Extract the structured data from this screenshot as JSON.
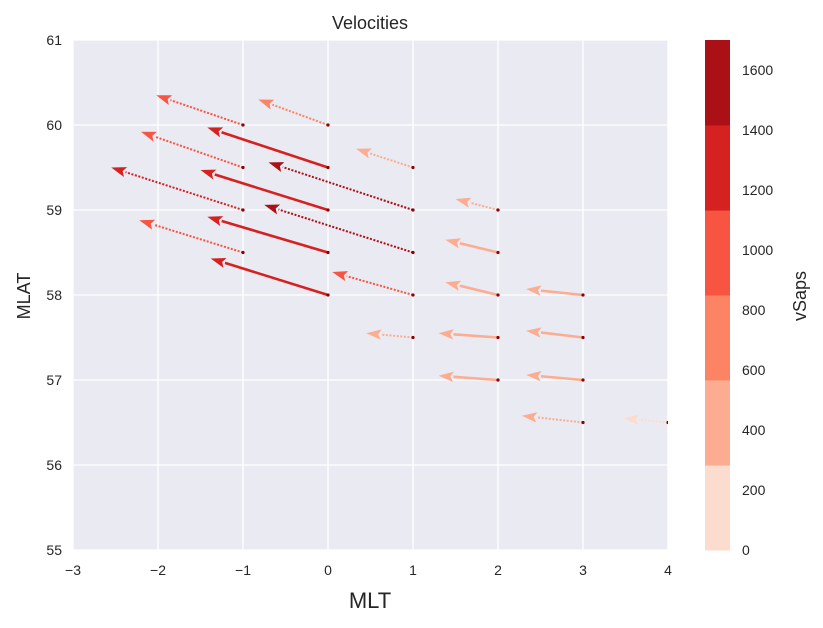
{
  "chart_data": {
    "type": "quiver",
    "title": "Velocities",
    "xlabel": "MLT",
    "ylabel": "MLAT",
    "xlim": [
      -3,
      4
    ],
    "ylim": [
      55,
      61
    ],
    "xticks": [
      -3,
      -2,
      -1,
      0,
      1,
      2,
      3,
      4
    ],
    "xtick_labels": [
      "−3",
      "−2",
      "−1",
      "0",
      "1",
      "2",
      "3",
      "4"
    ],
    "yticks": [
      55,
      56,
      57,
      58,
      59,
      60,
      61
    ],
    "ytick_labels": [
      "55",
      "56",
      "57",
      "58",
      "59",
      "60",
      "61"
    ],
    "grid": true,
    "colorbar": {
      "label": "vSaps",
      "range": [
        0,
        1700
      ],
      "bounds": [
        0,
        283,
        567,
        850,
        1133,
        1417,
        1700
      ],
      "colors": [
        "#fcdcce",
        "#fcad91",
        "#fc8464",
        "#f85442",
        "#d52221",
        "#ab1016"
      ],
      "ticks": [
        0,
        200,
        400,
        600,
        800,
        1000,
        1200,
        1400,
        1600
      ],
      "tick_labels": [
        "0",
        "200",
        "400",
        "600",
        "800",
        "1000",
        "1200",
        "1400",
        "1600"
      ]
    },
    "vectors": [
      {
        "x": -1,
        "y": 60.0,
        "dx": -1.02,
        "dy": 0.35,
        "v": 1000,
        "style": "dotted"
      },
      {
        "x": 0,
        "y": 60.0,
        "dx": -0.82,
        "dy": 0.3,
        "v": 800,
        "style": "dotted"
      },
      {
        "x": -1,
        "y": 59.5,
        "dx": -1.2,
        "dy": 0.42,
        "v": 1000,
        "style": "dotted"
      },
      {
        "x": 0,
        "y": 59.5,
        "dx": -1.42,
        "dy": 0.47,
        "v": 1350,
        "style": "solid"
      },
      {
        "x": 1,
        "y": 59.5,
        "dx": -0.67,
        "dy": 0.22,
        "v": 450,
        "style": "dotted"
      },
      {
        "x": -1,
        "y": 59.0,
        "dx": -1.55,
        "dy": 0.5,
        "v": 1350,
        "style": "dotted"
      },
      {
        "x": 0,
        "y": 59.0,
        "dx": -1.5,
        "dy": 0.47,
        "v": 1350,
        "style": "solid"
      },
      {
        "x": 1,
        "y": 59.0,
        "dx": -1.7,
        "dy": 0.56,
        "v": 1600,
        "style": "dotted"
      },
      {
        "x": 2,
        "y": 59.0,
        "dx": -0.5,
        "dy": 0.13,
        "v": 450,
        "style": "dotted"
      },
      {
        "x": -1,
        "y": 58.5,
        "dx": -1.22,
        "dy": 0.38,
        "v": 1000,
        "style": "dotted"
      },
      {
        "x": 0,
        "y": 58.5,
        "dx": -1.42,
        "dy": 0.42,
        "v": 1350,
        "style": "solid"
      },
      {
        "x": 1,
        "y": 58.5,
        "dx": -1.75,
        "dy": 0.56,
        "v": 1600,
        "style": "dotted"
      },
      {
        "x": 2,
        "y": 58.5,
        "dx": -0.62,
        "dy": 0.15,
        "v": 500,
        "style": "solid"
      },
      {
        "x": 0,
        "y": 58.0,
        "dx": -1.38,
        "dy": 0.43,
        "v": 1350,
        "style": "solid"
      },
      {
        "x": 1,
        "y": 58.0,
        "dx": -0.95,
        "dy": 0.27,
        "v": 900,
        "style": "dotted"
      },
      {
        "x": 2,
        "y": 58.0,
        "dx": -0.62,
        "dy": 0.15,
        "v": 500,
        "style": "solid"
      },
      {
        "x": 3,
        "y": 58.0,
        "dx": -0.67,
        "dy": 0.07,
        "v": 500,
        "style": "solid"
      },
      {
        "x": 1,
        "y": 57.5,
        "dx": -0.55,
        "dy": 0.05,
        "v": 450,
        "style": "dotted"
      },
      {
        "x": 2,
        "y": 57.5,
        "dx": -0.7,
        "dy": 0.05,
        "v": 500,
        "style": "solid"
      },
      {
        "x": 3,
        "y": 57.5,
        "dx": -0.67,
        "dy": 0.08,
        "v": 500,
        "style": "solid"
      },
      {
        "x": 2,
        "y": 57.0,
        "dx": -0.7,
        "dy": 0.05,
        "v": 500,
        "style": "solid"
      },
      {
        "x": 3,
        "y": 57.0,
        "dx": -0.67,
        "dy": 0.06,
        "v": 500,
        "style": "solid"
      },
      {
        "x": 3,
        "y": 56.5,
        "dx": -0.72,
        "dy": 0.08,
        "v": 450,
        "style": "dotted"
      },
      {
        "x": 4,
        "y": 56.5,
        "dx": -0.52,
        "dy": 0.05,
        "v": 200,
        "style": "dotted"
      }
    ]
  }
}
